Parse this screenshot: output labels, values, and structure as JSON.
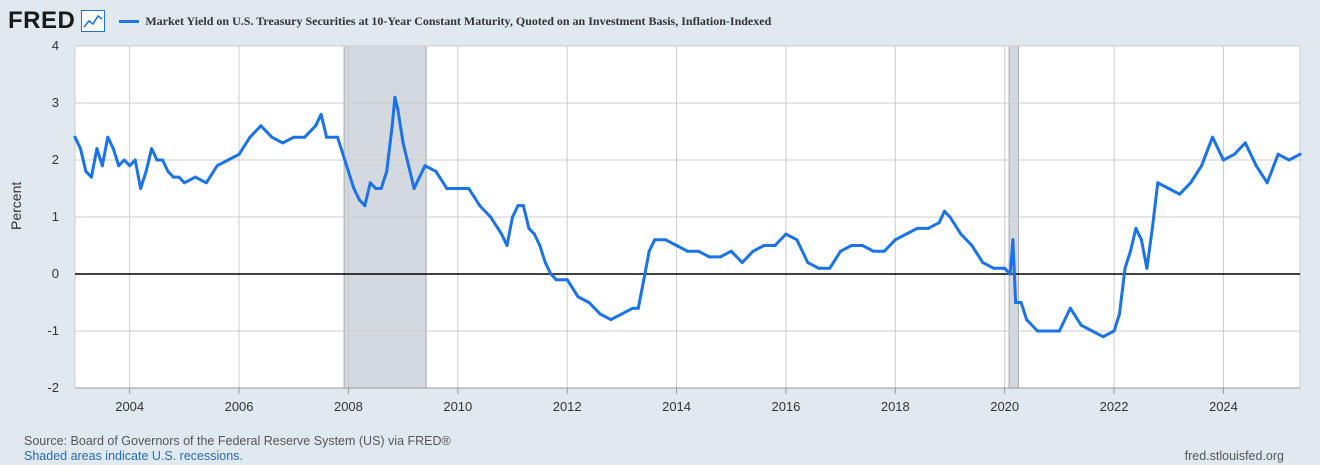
{
  "header": {
    "logo": "FRED",
    "series_title": "Market Yield on U.S. Treasury Securities at 10-Year Constant Maturity, Quoted on an Investment Basis, Inflation-Indexed"
  },
  "footer": {
    "source": "Source: Board of Governors of the Federal Reserve System (US) via FRED®",
    "shaded_note": "Shaded areas indicate U.S. recessions.",
    "site": "fred.stlouisfed.org"
  },
  "colors": {
    "series": "#1a73e8",
    "recession": "#d3d9de",
    "background": "#e1e9f0",
    "plot": "#ffffff"
  },
  "icons": [
    "fred-logo",
    "line-chart-icon"
  ],
  "chart_data": {
    "type": "line",
    "ylabel": "Percent",
    "xlabel": "",
    "xlim": [
      2003.0,
      2025.4
    ],
    "ylim": [
      -2,
      4
    ],
    "yticks": [
      -2,
      -1,
      0,
      1,
      2,
      3,
      4
    ],
    "xticks": [
      2004,
      2006,
      2008,
      2010,
      2012,
      2014,
      2016,
      2018,
      2020,
      2022,
      2024
    ],
    "grid": true,
    "zero_line": true,
    "recessions": [
      [
        2007.92,
        2009.42
      ],
      [
        2020.08,
        2020.25
      ]
    ],
    "series": [
      {
        "x": [
          2003.0,
          2003.1,
          2003.2,
          2003.3,
          2003.4,
          2003.5,
          2003.6,
          2003.7,
          2003.8,
          2003.9,
          2004.0,
          2004.1,
          2004.2,
          2004.3,
          2004.4,
          2004.5,
          2004.6,
          2004.7,
          2004.8,
          2004.9,
          2005.0,
          2005.2,
          2005.4,
          2005.6,
          2005.8,
          2006.0,
          2006.2,
          2006.4,
          2006.6,
          2006.8,
          2007.0,
          2007.2,
          2007.4,
          2007.5,
          2007.6,
          2007.8,
          2007.9,
          2008.0,
          2008.1,
          2008.2,
          2008.3,
          2008.4,
          2008.5,
          2008.6,
          2008.7,
          2008.8,
          2008.85,
          2008.9,
          2009.0,
          2009.1,
          2009.2,
          2009.3,
          2009.4,
          2009.6,
          2009.8,
          2010.0,
          2010.2,
          2010.4,
          2010.6,
          2010.8,
          2010.9,
          2011.0,
          2011.1,
          2011.2,
          2011.3,
          2011.4,
          2011.5,
          2011.6,
          2011.7,
          2011.8,
          2012.0,
          2012.2,
          2012.4,
          2012.6,
          2012.8,
          2013.0,
          2013.2,
          2013.3,
          2013.4,
          2013.5,
          2013.6,
          2013.8,
          2014.0,
          2014.2,
          2014.4,
          2014.6,
          2014.8,
          2015.0,
          2015.2,
          2015.4,
          2015.6,
          2015.8,
          2016.0,
          2016.2,
          2016.4,
          2016.6,
          2016.8,
          2017.0,
          2017.2,
          2017.4,
          2017.6,
          2017.8,
          2018.0,
          2018.2,
          2018.4,
          2018.6,
          2018.8,
          2018.9,
          2019.0,
          2019.2,
          2019.4,
          2019.6,
          2019.8,
          2020.0,
          2020.1,
          2020.15,
          2020.2,
          2020.3,
          2020.4,
          2020.6,
          2020.8,
          2021.0,
          2021.2,
          2021.4,
          2021.6,
          2021.8,
          2022.0,
          2022.1,
          2022.2,
          2022.3,
          2022.4,
          2022.5,
          2022.6,
          2022.7,
          2022.8,
          2023.0,
          2023.2,
          2023.4,
          2023.6,
          2023.8,
          2024.0,
          2024.2,
          2024.4,
          2024.6,
          2024.8,
          2025.0,
          2025.2,
          2025.4
        ],
        "values": [
          2.4,
          2.2,
          1.8,
          1.7,
          2.2,
          1.9,
          2.4,
          2.2,
          1.9,
          2.0,
          1.9,
          2.0,
          1.5,
          1.8,
          2.2,
          2.0,
          2.0,
          1.8,
          1.7,
          1.7,
          1.6,
          1.7,
          1.6,
          1.9,
          2.0,
          2.1,
          2.4,
          2.6,
          2.4,
          2.3,
          2.4,
          2.4,
          2.6,
          2.8,
          2.4,
          2.4,
          2.1,
          1.8,
          1.5,
          1.3,
          1.2,
          1.6,
          1.5,
          1.5,
          1.8,
          2.6,
          3.1,
          2.9,
          2.3,
          1.9,
          1.5,
          1.7,
          1.9,
          1.8,
          1.5,
          1.5,
          1.5,
          1.2,
          1.0,
          0.7,
          0.5,
          1.0,
          1.2,
          1.2,
          0.8,
          0.7,
          0.5,
          0.2,
          0.0,
          -0.1,
          -0.1,
          -0.4,
          -0.5,
          -0.7,
          -0.8,
          -0.7,
          -0.6,
          -0.6,
          -0.1,
          0.4,
          0.6,
          0.6,
          0.5,
          0.4,
          0.4,
          0.3,
          0.3,
          0.4,
          0.2,
          0.4,
          0.5,
          0.5,
          0.7,
          0.6,
          0.2,
          0.1,
          0.1,
          0.4,
          0.5,
          0.5,
          0.4,
          0.4,
          0.6,
          0.7,
          0.8,
          0.8,
          0.9,
          1.1,
          1.0,
          0.7,
          0.5,
          0.2,
          0.1,
          0.1,
          0.0,
          0.6,
          -0.5,
          -0.5,
          -0.8,
          -1.0,
          -1.0,
          -1.0,
          -0.6,
          -0.9,
          -1.0,
          -1.1,
          -1.0,
          -0.7,
          0.1,
          0.4,
          0.8,
          0.6,
          0.1,
          0.8,
          1.6,
          1.5,
          1.4,
          1.6,
          1.9,
          2.4,
          2.0,
          2.1,
          2.3,
          1.9,
          1.6,
          2.1,
          2.0,
          2.1
        ]
      }
    ]
  }
}
